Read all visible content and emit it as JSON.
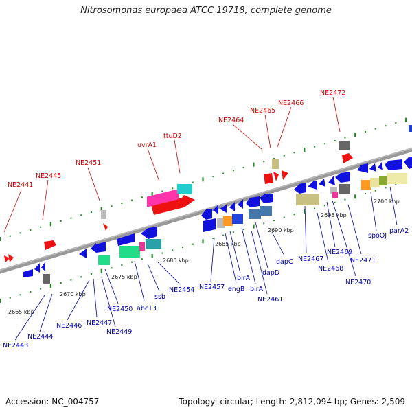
{
  "title": "Nitrosomonas europaea ATCC 19718, complete genome",
  "footer": {
    "accession": "Accession: NC_004757",
    "topology": "Topology: circular; Length: 2,812,094 bp; Genes: 2,509"
  },
  "colors": {
    "forward_gene": "#ee1111",
    "reverse_gene": "#1111dd",
    "label_red": "#cc0000",
    "label_blue": "#0000aa",
    "backbone": "#888888",
    "ruler": "#228822"
  },
  "ruler_ticks": [
    {
      "text": "2665 kbp"
    },
    {
      "text": "2670 kbp"
    },
    {
      "text": "2675 kbp"
    },
    {
      "text": "2680 kbp"
    },
    {
      "text": "2685 kbp"
    },
    {
      "text": "2690 kbp"
    },
    {
      "text": "2695 kbp"
    },
    {
      "text": "2700 kbp"
    }
  ],
  "forward_labels": [
    "NE2441",
    "NE2445",
    "NE2451",
    "uvrA1",
    "ttuD2",
    "NE2464",
    "NE2465",
    "NE2466",
    "NE2472"
  ],
  "reverse_labels": [
    "NE2443",
    "NE2444",
    "NE2446",
    "NE2447",
    "NE2449",
    "NE2450",
    "abcT3",
    "ssb",
    "NE2454",
    "NE2457",
    "engB",
    "birA",
    "birA",
    "NE2461",
    "dapD",
    "dapC",
    "NE2467",
    "NE2468",
    "NE2469",
    "NE2470",
    "NE2471",
    "spoOJ",
    "parA2"
  ]
}
